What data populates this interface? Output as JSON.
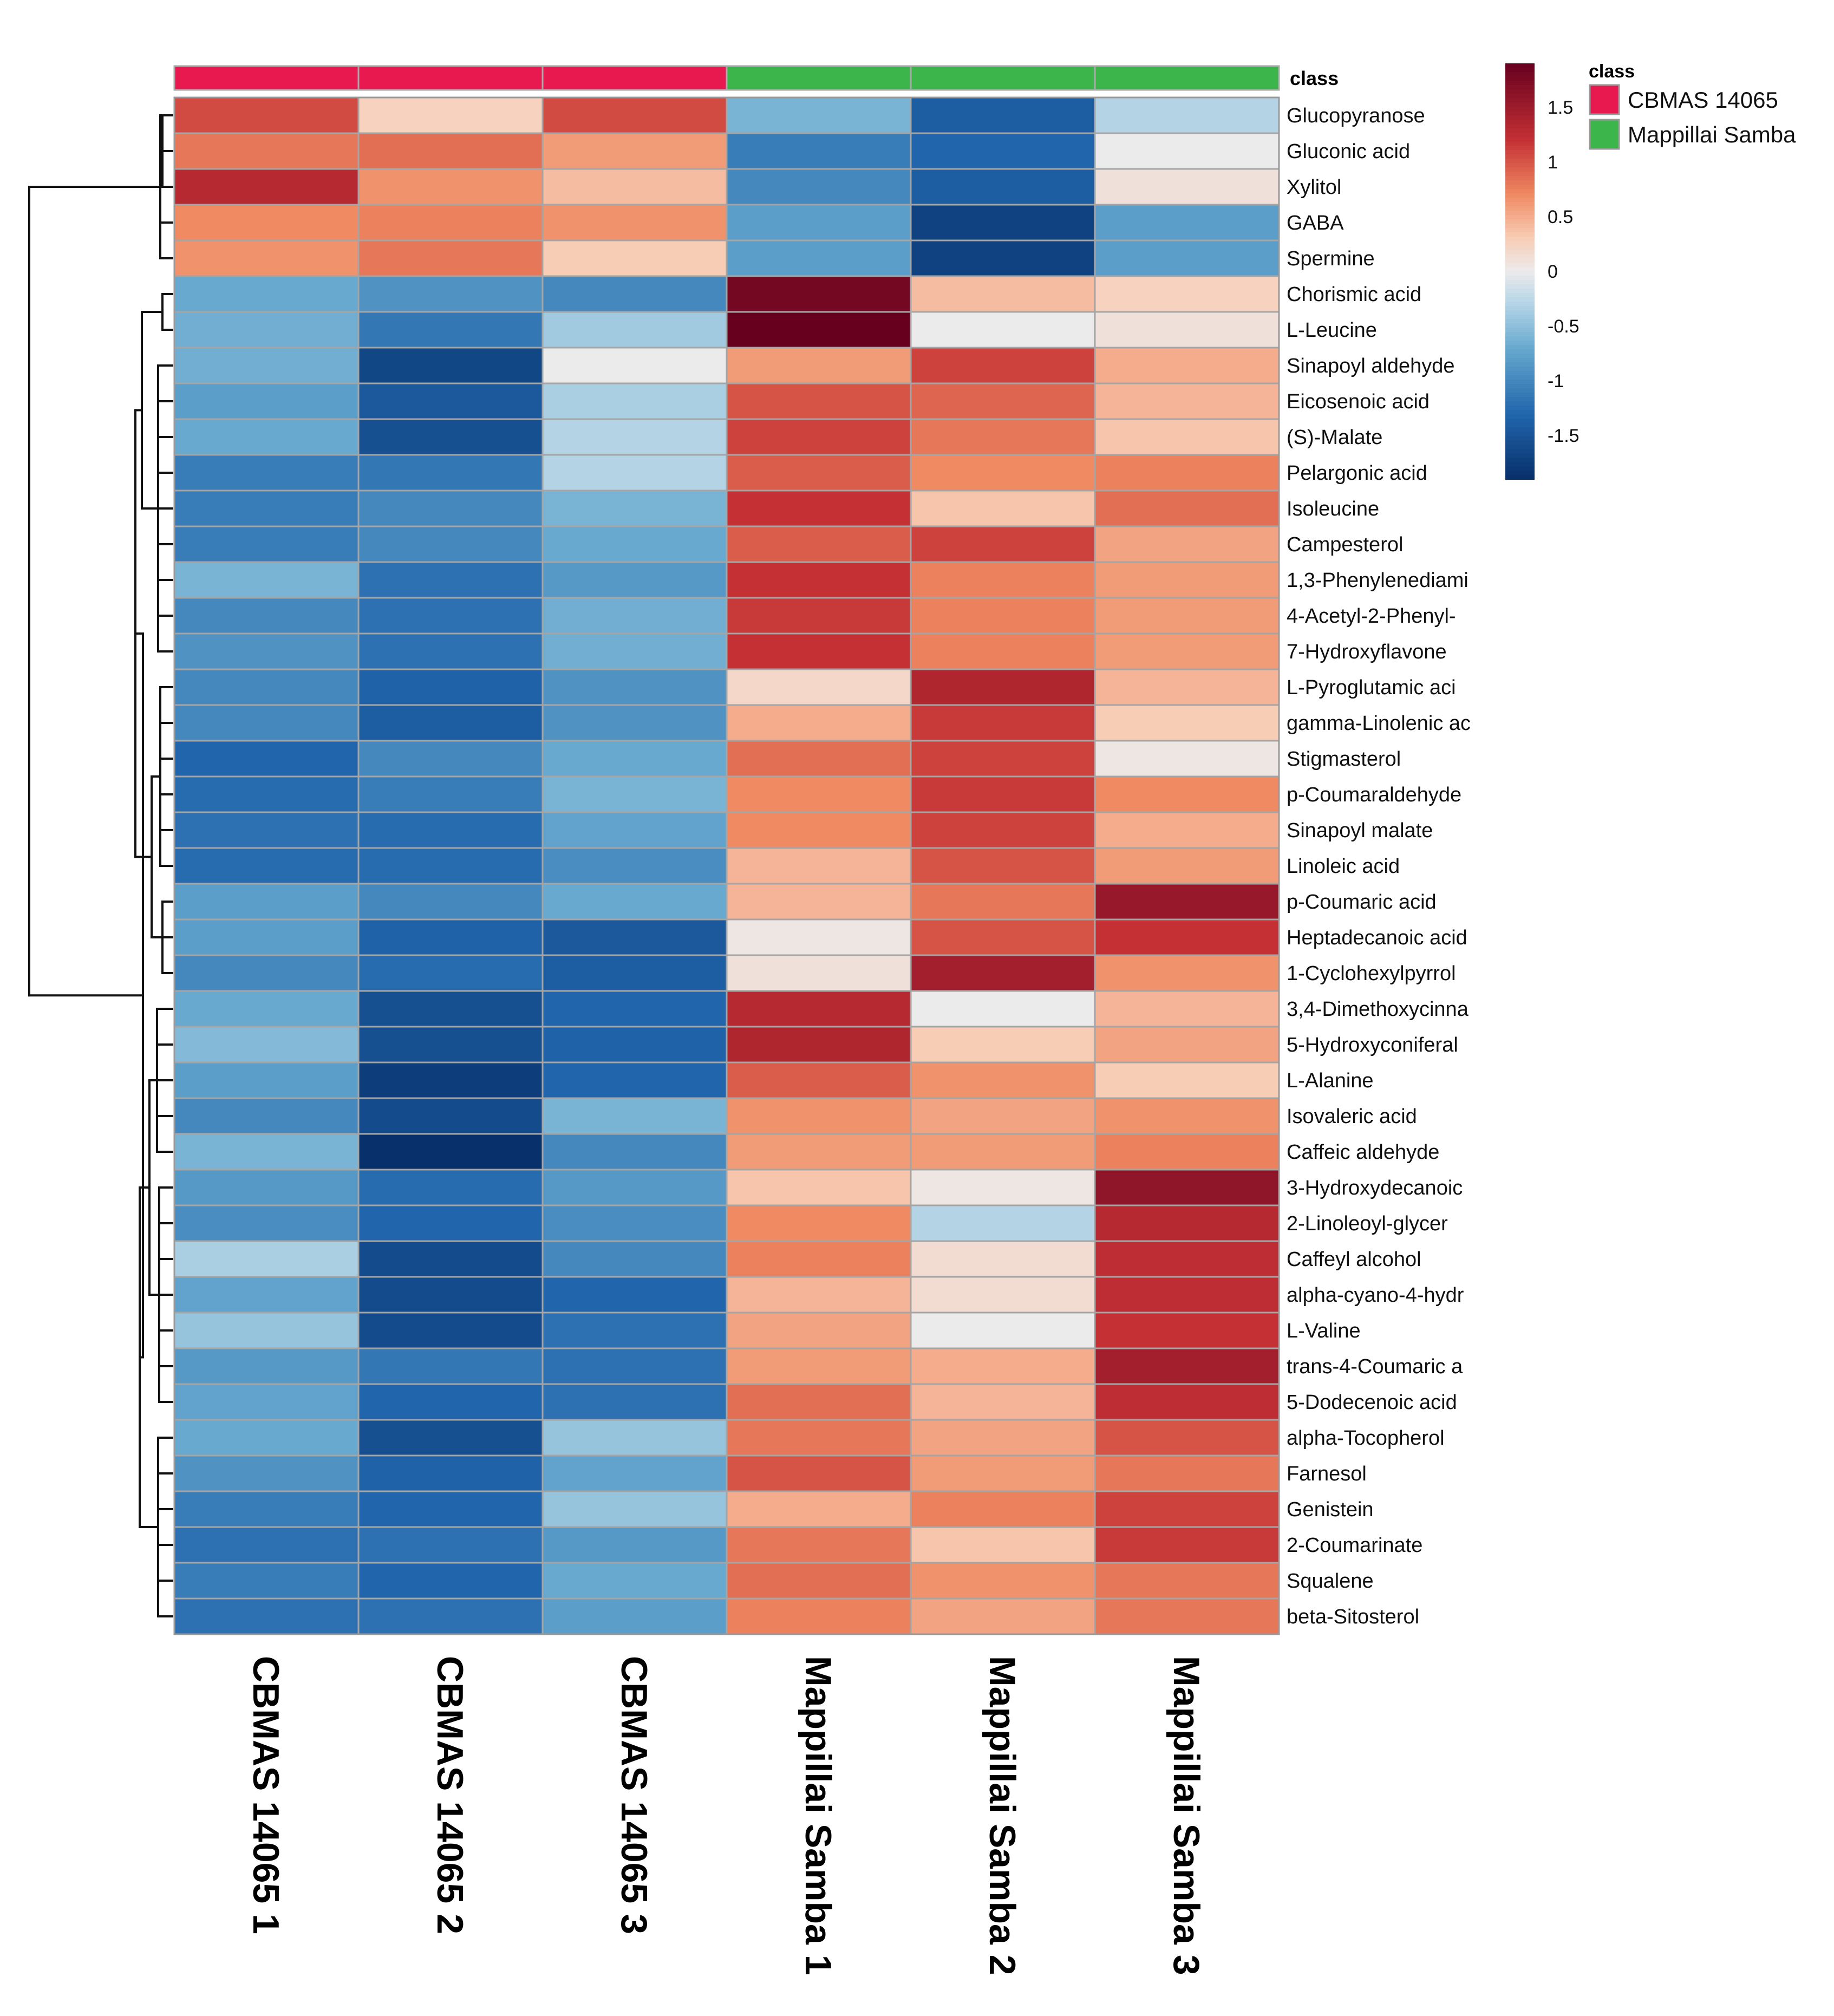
{
  "chart_data": {
    "type": "heatmap",
    "title": "",
    "class_annotation_label": "class",
    "legend": {
      "title": "class",
      "entries": [
        {
          "name": "CBMAS 14065",
          "color": "#e8194e"
        },
        {
          "name": "Mappillai Samba",
          "color": "#3cb54a"
        }
      ]
    },
    "colorbar": {
      "ticks": [
        "1.5",
        "1",
        "0.5",
        "0",
        "-0.5",
        "-1",
        "-1.5"
      ],
      "tick_values": [
        1.5,
        1,
        0.5,
        0,
        -0.5,
        -1,
        -1.5
      ],
      "range": [
        -1.9,
        1.9
      ],
      "low_color": "#08306b",
      "mid_color": "#f0f0f0",
      "high_color": "#67001f"
    },
    "columns": [
      {
        "label": "CBMAS 14065 1",
        "class": "CBMAS 14065"
      },
      {
        "label": "CBMAS 14065 2",
        "class": "CBMAS 14065"
      },
      {
        "label": "CBMAS 14065 3",
        "class": "CBMAS 14065"
      },
      {
        "label": "Mappillai Samba 1",
        "class": "Mappillai Samba"
      },
      {
        "label": "Mappillai Samba 2",
        "class": "Mappillai Samba"
      },
      {
        "label": "Mappillai Samba 3",
        "class": "Mappillai Samba"
      }
    ],
    "rows": [
      {
        "label": "Glucopyranose",
        "values": [
          1.05,
          0.25,
          1.05,
          -0.6,
          -1.4,
          -0.3
        ]
      },
      {
        "label": "Gluconic acid",
        "values": [
          0.8,
          0.85,
          0.6,
          -1.1,
          -1.3,
          0.0
        ]
      },
      {
        "label": "Xylitol",
        "values": [
          1.3,
          0.65,
          0.4,
          -1.0,
          -1.4,
          0.1
        ]
      },
      {
        "label": "GABA",
        "values": [
          0.7,
          0.75,
          0.65,
          -0.8,
          -1.7,
          -0.8
        ]
      },
      {
        "label": "Spermine",
        "values": [
          0.65,
          0.8,
          0.3,
          -0.8,
          -1.7,
          -0.8
        ]
      },
      {
        "label": "Chorismic acid",
        "values": [
          -0.7,
          -0.9,
          -1.0,
          1.8,
          0.4,
          0.25
        ]
      },
      {
        "label": "L-Leucine",
        "values": [
          -0.65,
          -1.15,
          -0.4,
          1.95,
          0.0,
          0.1
        ]
      },
      {
        "label": "Sinapoyl aldehyde",
        "values": [
          -0.65,
          -1.65,
          0.0,
          0.6,
          1.1,
          0.5
        ]
      },
      {
        "label": "Eicosenoic acid",
        "values": [
          -0.8,
          -1.45,
          -0.35,
          1.0,
          0.9,
          0.45
        ]
      },
      {
        "label": "(S)-Malate",
        "values": [
          -0.7,
          -1.55,
          -0.3,
          1.1,
          0.8,
          0.35
        ]
      },
      {
        "label": "Pelargonic acid",
        "values": [
          -1.1,
          -1.15,
          -0.3,
          0.95,
          0.7,
          0.75
        ]
      },
      {
        "label": "Isoleucine",
        "values": [
          -1.1,
          -1.0,
          -0.6,
          1.2,
          0.35,
          0.85
        ]
      },
      {
        "label": "Campesterol",
        "values": [
          -1.1,
          -1.0,
          -0.7,
          0.95,
          1.1,
          0.55
        ]
      },
      {
        "label": "1,3-Phenylenediami",
        "values": [
          -0.6,
          -1.2,
          -0.85,
          1.2,
          0.75,
          0.6
        ]
      },
      {
        "label": "4-Acetyl-2-Phenyl-",
        "values": [
          -1.0,
          -1.2,
          -0.65,
          1.15,
          0.75,
          0.6
        ]
      },
      {
        "label": "7-Hydroxyflavone",
        "values": [
          -0.9,
          -1.2,
          -0.65,
          1.2,
          0.75,
          0.6
        ]
      },
      {
        "label": "L-Pyroglutamic aci",
        "values": [
          -1.0,
          -1.35,
          -0.9,
          0.2,
          1.35,
          0.45
        ]
      },
      {
        "label": "gamma-Linolenic ac",
        "values": [
          -1.0,
          -1.4,
          -0.9,
          0.5,
          1.15,
          0.3
        ]
      },
      {
        "label": "Stigmasterol",
        "values": [
          -1.3,
          -1.0,
          -0.7,
          0.85,
          1.1,
          0.05
        ]
      },
      {
        "label": "p-Coumaraldehyde",
        "values": [
          -1.25,
          -1.1,
          -0.6,
          0.7,
          1.15,
          0.7
        ]
      },
      {
        "label": "Sinapoyl malate",
        "values": [
          -1.2,
          -1.25,
          -0.75,
          0.7,
          1.1,
          0.5
        ]
      },
      {
        "label": "Linoleic acid",
        "values": [
          -1.25,
          -1.25,
          -0.95,
          0.45,
          1.0,
          0.6
        ]
      },
      {
        "label": "p-Coumaric acid",
        "values": [
          -0.8,
          -1.0,
          -0.7,
          0.45,
          0.8,
          1.55
        ]
      },
      {
        "label": "Heptadecanoic acid",
        "values": [
          -0.8,
          -1.35,
          -1.45,
          0.05,
          1.0,
          1.2
        ]
      },
      {
        "label": "1-Cyclohexylpyrrol",
        "values": [
          -1.0,
          -1.25,
          -1.4,
          0.1,
          1.45,
          0.65
        ]
      },
      {
        "label": "3,4-Dimethoxycinna",
        "values": [
          -0.7,
          -1.55,
          -1.3,
          1.3,
          0.0,
          0.45
        ]
      },
      {
        "label": "5-Hydroxyconiferal",
        "values": [
          -0.55,
          -1.55,
          -1.35,
          1.35,
          0.3,
          0.55
        ]
      },
      {
        "label": "L-Alanine",
        "values": [
          -0.8,
          -1.75,
          -1.3,
          0.95,
          0.65,
          0.3
        ]
      },
      {
        "label": "Isovaleric acid",
        "values": [
          -1.0,
          -1.6,
          -0.6,
          0.65,
          0.55,
          0.65
        ]
      },
      {
        "label": "Caffeic aldehyde",
        "values": [
          -0.6,
          -1.9,
          -1.0,
          0.6,
          0.6,
          0.75
        ]
      },
      {
        "label": "3-Hydroxydecanoic",
        "values": [
          -0.85,
          -1.25,
          -0.85,
          0.35,
          0.05,
          1.6
        ]
      },
      {
        "label": "2-Linoleoyl-glycer",
        "values": [
          -0.95,
          -1.3,
          -0.95,
          0.7,
          -0.3,
          1.3
        ]
      },
      {
        "label": "Caffeyl alcohol",
        "values": [
          -0.35,
          -1.6,
          -1.0,
          0.75,
          0.15,
          1.25
        ]
      },
      {
        "label": "alpha-cyano-4-hydr",
        "values": [
          -0.75,
          -1.6,
          -1.3,
          0.45,
          0.15,
          1.25
        ]
      },
      {
        "label": "L-Valine",
        "values": [
          -0.45,
          -1.6,
          -1.2,
          0.55,
          0.0,
          1.2
        ]
      },
      {
        "label": "trans-4-Coumaric a",
        "values": [
          -0.85,
          -1.15,
          -1.2,
          0.6,
          0.5,
          1.45
        ]
      },
      {
        "label": "5-Dodecenoic acid",
        "values": [
          -0.75,
          -1.3,
          -1.2,
          0.85,
          0.45,
          1.25
        ]
      },
      {
        "label": "alpha-Tocopherol",
        "values": [
          -0.7,
          -1.55,
          -0.45,
          0.8,
          0.55,
          1.0
        ]
      },
      {
        "label": "Farnesol",
        "values": [
          -0.9,
          -1.35,
          -0.75,
          1.0,
          0.6,
          0.8
        ]
      },
      {
        "label": "Genistein",
        "values": [
          -1.1,
          -1.3,
          -0.45,
          0.5,
          0.75,
          1.1
        ]
      },
      {
        "label": "2-Coumarinate",
        "values": [
          -1.2,
          -1.2,
          -0.85,
          0.8,
          0.35,
          1.15
        ]
      },
      {
        "label": "Squalene",
        "values": [
          -1.1,
          -1.3,
          -0.7,
          0.85,
          0.65,
          0.8
        ]
      },
      {
        "label": "beta-Sitosterol",
        "values": [
          -1.2,
          -1.2,
          -0.8,
          0.75,
          0.55,
          0.8
        ]
      }
    ]
  }
}
